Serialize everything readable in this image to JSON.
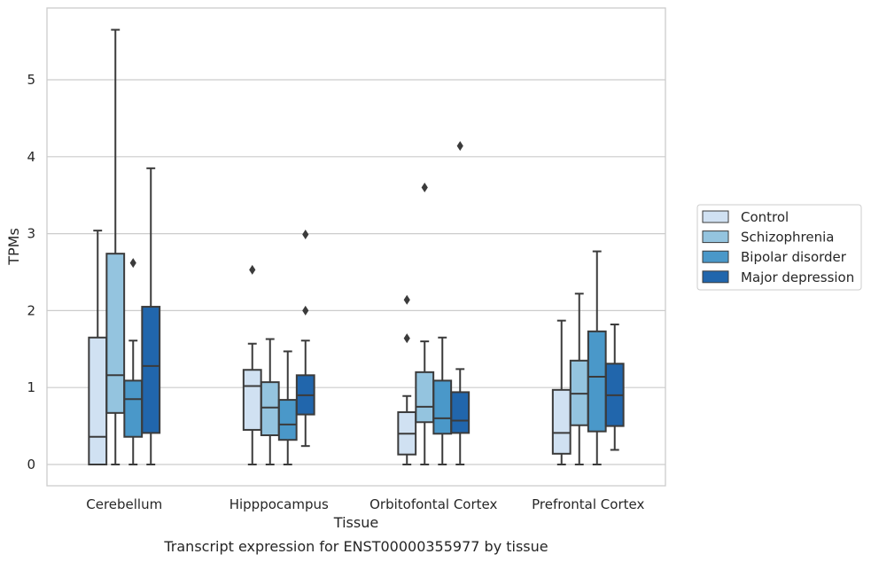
{
  "chart_data": {
    "type": "boxplot",
    "title": "Transcript expression for ENST00000355977 by tissue",
    "xlabel": "Tissue",
    "ylabel": "TPMs",
    "ylim": [
      -0.28,
      5.95
    ],
    "yticks": [
      0,
      1,
      2,
      3,
      4,
      5
    ],
    "grid": "horizontal",
    "legend": "right",
    "categories": [
      "Cerebellum",
      "Hipppocampus",
      "Orbitofontal Cortex",
      "Prefrontal Cortex"
    ],
    "series": [
      {
        "name": "Control",
        "color": "#d0e1f2",
        "boxes": [
          {
            "whislo": 0,
            "q1": 0,
            "med": 0.36,
            "q3": 1.65,
            "whishi": 3.04,
            "fliers": []
          },
          {
            "whislo": 0,
            "q1": 0.45,
            "med": 1.02,
            "q3": 1.23,
            "whishi": 1.57,
            "fliers": [
              2.53
            ]
          },
          {
            "whislo": 0,
            "q1": 0.13,
            "med": 0.4,
            "q3": 0.68,
            "whishi": 0.89,
            "fliers": [
              1.64,
              2.14
            ]
          },
          {
            "whislo": 0,
            "q1": 0.14,
            "med": 0.41,
            "q3": 0.97,
            "whishi": 1.87,
            "fliers": []
          }
        ]
      },
      {
        "name": "Schizophrenia",
        "color": "#94c4df",
        "boxes": [
          {
            "whislo": 0,
            "q1": 0.67,
            "med": 1.16,
            "q3": 2.74,
            "whishi": 5.65,
            "fliers": []
          },
          {
            "whislo": 0,
            "q1": 0.38,
            "med": 0.74,
            "q3": 1.07,
            "whishi": 1.63,
            "fliers": []
          },
          {
            "whislo": 0,
            "q1": 0.55,
            "med": 0.75,
            "q3": 1.2,
            "whishi": 1.6,
            "fliers": [
              3.6
            ]
          },
          {
            "whislo": 0,
            "q1": 0.51,
            "med": 0.92,
            "q3": 1.35,
            "whishi": 2.22,
            "fliers": []
          }
        ]
      },
      {
        "name": "Bipolar disorder",
        "color": "#4a98c9",
        "boxes": [
          {
            "whislo": 0,
            "q1": 0.36,
            "med": 0.85,
            "q3": 1.09,
            "whishi": 1.61,
            "fliers": [
              2.62
            ]
          },
          {
            "whislo": 0,
            "q1": 0.32,
            "med": 0.52,
            "q3": 0.84,
            "whishi": 1.47,
            "fliers": []
          },
          {
            "whislo": 0,
            "q1": 0.4,
            "med": 0.6,
            "q3": 1.09,
            "whishi": 1.65,
            "fliers": []
          },
          {
            "whislo": 0,
            "q1": 0.43,
            "med": 1.14,
            "q3": 1.73,
            "whishi": 2.77,
            "fliers": []
          }
        ]
      },
      {
        "name": "Major depression",
        "color": "#2166ac",
        "boxes": [
          {
            "whislo": 0,
            "q1": 0.41,
            "med": 1.28,
            "q3": 2.05,
            "whishi": 3.85,
            "fliers": []
          },
          {
            "whislo": 0.24,
            "q1": 0.65,
            "med": 0.9,
            "q3": 1.16,
            "whishi": 1.61,
            "fliers": [
              2.0,
              2.99
            ]
          },
          {
            "whislo": 0,
            "q1": 0.41,
            "med": 0.57,
            "q3": 0.94,
            "whishi": 1.24,
            "fliers": [
              4.14
            ]
          },
          {
            "whislo": 0.19,
            "q1": 0.5,
            "med": 0.9,
            "q3": 1.31,
            "whishi": 1.82,
            "fliers": []
          }
        ]
      }
    ]
  }
}
